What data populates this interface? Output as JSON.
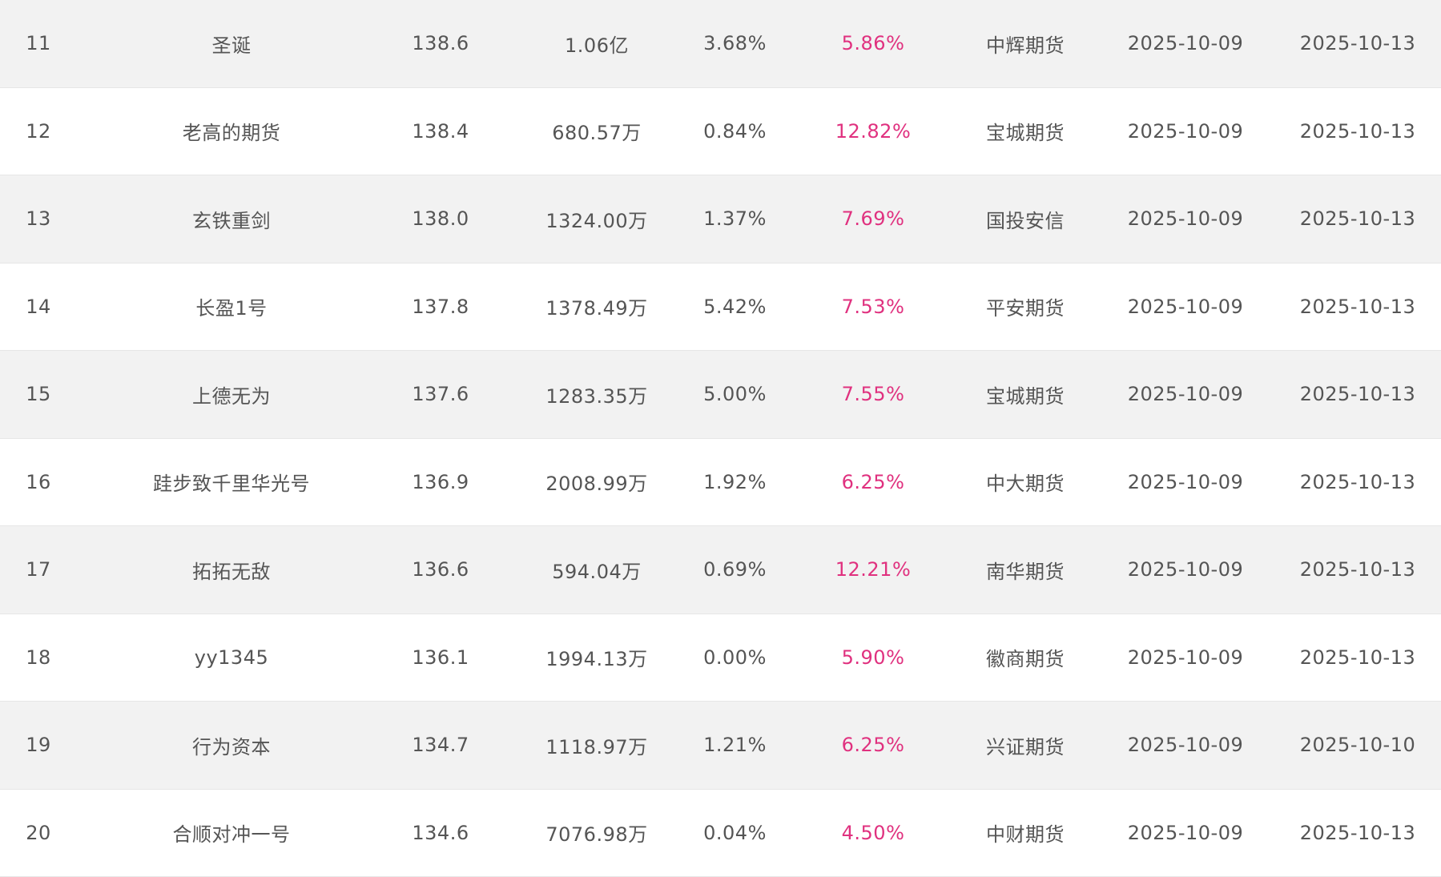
{
  "accent_color": "#e0317f",
  "rows": [
    {
      "rank": "11",
      "name": "圣诞",
      "score": "138.6",
      "scale": "1.06亿",
      "drawdown": "3.68%",
      "return": "5.86%",
      "broker": "中辉期货",
      "date1": "2025-10-09",
      "date2": "2025-10-13"
    },
    {
      "rank": "12",
      "name": "老高的期货",
      "score": "138.4",
      "scale": "680.57万",
      "drawdown": "0.84%",
      "return": "12.82%",
      "broker": "宝城期货",
      "date1": "2025-10-09",
      "date2": "2025-10-13"
    },
    {
      "rank": "13",
      "name": "玄铁重剑",
      "score": "138.0",
      "scale": "1324.00万",
      "drawdown": "1.37%",
      "return": "7.69%",
      "broker": "国投安信",
      "date1": "2025-10-09",
      "date2": "2025-10-13"
    },
    {
      "rank": "14",
      "name": "长盈1号",
      "score": "137.8",
      "scale": "1378.49万",
      "drawdown": "5.42%",
      "return": "7.53%",
      "broker": "平安期货",
      "date1": "2025-10-09",
      "date2": "2025-10-13"
    },
    {
      "rank": "15",
      "name": "上德无为",
      "score": "137.6",
      "scale": "1283.35万",
      "drawdown": "5.00%",
      "return": "7.55%",
      "broker": "宝城期货",
      "date1": "2025-10-09",
      "date2": "2025-10-13"
    },
    {
      "rank": "16",
      "name": "跬步致千里华光号",
      "score": "136.9",
      "scale": "2008.99万",
      "drawdown": "1.92%",
      "return": "6.25%",
      "broker": "中大期货",
      "date1": "2025-10-09",
      "date2": "2025-10-13"
    },
    {
      "rank": "17",
      "name": "拓拓无敌",
      "score": "136.6",
      "scale": "594.04万",
      "drawdown": "0.69%",
      "return": "12.21%",
      "broker": "南华期货",
      "date1": "2025-10-09",
      "date2": "2025-10-13"
    },
    {
      "rank": "18",
      "name": "yy1345",
      "score": "136.1",
      "scale": "1994.13万",
      "drawdown": "0.00%",
      "return": "5.90%",
      "broker": "徽商期货",
      "date1": "2025-10-09",
      "date2": "2025-10-13"
    },
    {
      "rank": "19",
      "name": "行为资本",
      "score": "134.7",
      "scale": "1118.97万",
      "drawdown": "1.21%",
      "return": "6.25%",
      "broker": "兴证期货",
      "date1": "2025-10-09",
      "date2": "2025-10-10"
    },
    {
      "rank": "20",
      "name": "合顺对冲一号",
      "score": "134.6",
      "scale": "7076.98万",
      "drawdown": "0.04%",
      "return": "4.50%",
      "broker": "中财期货",
      "date1": "2025-10-09",
      "date2": "2025-10-13"
    }
  ]
}
